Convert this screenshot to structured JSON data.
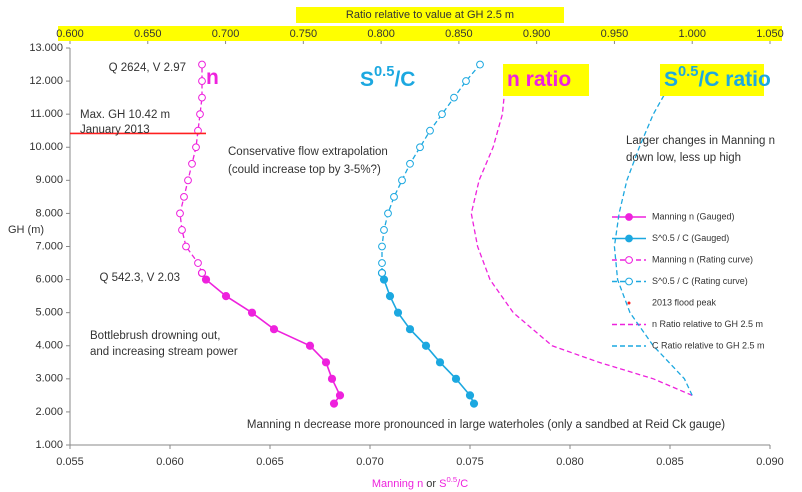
{
  "chart_data": {
    "type": "line",
    "y_label": "GH (m)",
    "x_label": [
      {
        "text": "Manning n",
        "color": "#ee22dd"
      },
      {
        "text": " or ",
        "color": "#333333"
      },
      {
        "text": "S",
        "color": "#ee22dd"
      },
      {
        "text": "0.5",
        "color": "#ee22dd",
        "sup": true
      },
      {
        "text": "/C",
        "color": "#ee22dd"
      }
    ],
    "x2_label": "Ratio relative to value at GH 2.5 m",
    "highlight_color": "#ffff00",
    "xlim": [
      0.055,
      0.09
    ],
    "xticks": [
      {
        "value": 0.055,
        "label": "0.055"
      },
      {
        "value": 0.06,
        "label": "0.060"
      },
      {
        "value": 0.065,
        "label": "0.065"
      },
      {
        "value": 0.07,
        "label": "0.070"
      },
      {
        "value": 0.075,
        "label": "0.075"
      },
      {
        "value": 0.08,
        "label": "0.080"
      },
      {
        "value": 0.085,
        "label": "0.085"
      },
      {
        "value": 0.09,
        "label": "0.090"
      }
    ],
    "x2lim": [
      0.6,
      1.05
    ],
    "x2ticks": [
      {
        "value": 0.6,
        "label": "0.600"
      },
      {
        "value": 0.65,
        "label": "0.650"
      },
      {
        "value": 0.7,
        "label": "0.700"
      },
      {
        "value": 0.75,
        "label": "0.750"
      },
      {
        "value": 0.8,
        "label": "0.800"
      },
      {
        "value": 0.85,
        "label": "0.850"
      },
      {
        "value": 0.9,
        "label": "0.900"
      },
      {
        "value": 0.95,
        "label": "0.950"
      },
      {
        "value": 1.0,
        "label": "1.000"
      },
      {
        "value": 1.05,
        "label": "1.050"
      }
    ],
    "ylim": [
      1,
      13
    ],
    "yticks": [
      {
        "value": 1,
        "label": "1.000"
      },
      {
        "value": 2,
        "label": "2.000"
      },
      {
        "value": 3,
        "label": "3.000"
      },
      {
        "value": 4,
        "label": "4.000"
      },
      {
        "value": 5,
        "label": "5.000"
      },
      {
        "value": 6,
        "label": "6.000"
      },
      {
        "value": 7,
        "label": "7.000"
      },
      {
        "value": 8,
        "label": "8.000"
      },
      {
        "value": 9,
        "label": "9.000"
      },
      {
        "value": 10,
        "label": "10.000"
      },
      {
        "value": 11,
        "label": "11.000"
      },
      {
        "value": 12,
        "label": "12.000"
      },
      {
        "value": 13,
        "label": "13.000"
      }
    ],
    "series": [
      {
        "name": "Manning n (Gauged)",
        "color": "#ee22dd",
        "line": "solid",
        "marker": "filled",
        "axis": "x",
        "x": [
          0.0682,
          0.0685,
          0.0681,
          0.0678,
          0.067,
          0.0652,
          0.0641,
          0.0628,
          0.0618,
          0.0616
        ],
        "values": [
          2.25,
          2.5,
          3.0,
          3.5,
          4.0,
          4.5,
          5.0,
          5.5,
          6.0,
          6.2
        ]
      },
      {
        "name": "S^0.5 / C (Gauged)",
        "color": "#1ca8e0",
        "line": "solid",
        "marker": "filled",
        "axis": "x",
        "x": [
          0.0752,
          0.075,
          0.0743,
          0.0735,
          0.0728,
          0.072,
          0.0714,
          0.071,
          0.0707,
          0.0706
        ],
        "values": [
          2.25,
          2.5,
          3.0,
          3.5,
          4.0,
          4.5,
          5.0,
          5.5,
          6.0,
          6.2
        ]
      },
      {
        "name": "Manning n (Rating curve)",
        "color": "#ee22dd",
        "line": "dashed",
        "marker": "open",
        "axis": "x",
        "x": [
          0.0616,
          0.0614,
          0.0608,
          0.0606,
          0.0605,
          0.0607,
          0.0609,
          0.0611,
          0.0613,
          0.0614,
          0.0615,
          0.0616,
          0.0616,
          0.0616
        ],
        "values": [
          6.2,
          6.5,
          7.0,
          7.5,
          8.0,
          8.5,
          9.0,
          9.5,
          10.0,
          10.5,
          11.0,
          11.5,
          12.0,
          12.5
        ]
      },
      {
        "name": "S^0.5 / C (Rating curve)",
        "color": "#1ca8e0",
        "line": "dashed",
        "marker": "open",
        "axis": "x",
        "x": [
          0.0706,
          0.0706,
          0.0706,
          0.0707,
          0.0709,
          0.0712,
          0.0716,
          0.072,
          0.0725,
          0.073,
          0.0736,
          0.0742,
          0.0748,
          0.0755
        ],
        "values": [
          6.2,
          6.5,
          7.0,
          7.5,
          8.0,
          8.5,
          9.0,
          9.5,
          10.0,
          10.5,
          11.0,
          11.5,
          12.0,
          12.5
        ]
      },
      {
        "name": "2013 flood peak",
        "color": "#ff2020",
        "line": "solid",
        "marker": "dot",
        "axis": "x",
        "x": [
          0.055,
          0.0618
        ],
        "values": [
          10.42,
          10.42
        ]
      },
      {
        "name": "n Ratio relative to GH 2.5 m",
        "color": "#ee22dd",
        "line": "dashed",
        "marker": "none",
        "axis": "x2",
        "x": [
          1.0,
          0.975,
          0.94,
          0.91,
          0.885,
          0.87,
          0.862,
          0.858,
          0.863,
          0.872,
          0.878,
          0.88,
          0.879
        ],
        "values": [
          2.5,
          3.0,
          3.5,
          4.0,
          5.0,
          6.0,
          7.0,
          8.0,
          9.0,
          10.0,
          11.0,
          12.0,
          12.5
        ]
      },
      {
        "name": "C Ratio relative to GH 2.5 m",
        "color": "#1ca8e0",
        "line": "dashed",
        "marker": "none",
        "axis": "x2",
        "x": [
          1.0,
          0.995,
          0.985,
          0.975,
          0.96,
          0.952,
          0.95,
          0.953,
          0.958,
          0.966,
          0.975,
          0.987,
          0.995
        ],
        "values": [
          2.5,
          3.0,
          3.5,
          4.0,
          5.0,
          6.0,
          7.0,
          8.0,
          9.0,
          10.0,
          11.0,
          12.0,
          12.5
        ]
      }
    ],
    "curve_labels": [
      [
        {
          "text": "n",
          "color": "#ee22dd"
        }
      ],
      [
        {
          "text": "S",
          "color": "#1ca8e0"
        },
        {
          "text": "0.5",
          "color": "#1ca8e0",
          "sup": true
        },
        {
          "text": "/C",
          "color": "#1ca8e0"
        }
      ],
      [
        {
          "text": "n ratio",
          "color": "#ee22dd"
        }
      ],
      [
        {
          "text": "S",
          "color": "#1ca8e0"
        },
        {
          "text": "0.5",
          "color": "#1ca8e0",
          "sup": true
        },
        {
          "text": "/C ratio",
          "color": "#1ca8e0"
        }
      ]
    ],
    "annotations": [
      {
        "text": "Q 2624, V 2.97",
        "color": "#ff2020"
      },
      {
        "text": "Max. GH 10.42 m",
        "color": "#ff2020"
      },
      {
        "text": "January 2013",
        "color": "#ff2020"
      },
      {
        "text": "Conservative flow extrapolation",
        "color": "#ee22dd"
      },
      {
        "text": "(could increase top by 3-5%?)",
        "color": "#ee22dd"
      },
      {
        "text": "Q 542.3, V 2.03",
        "color": "#ff2020"
      },
      {
        "text": "Bottlebrush drowning out,",
        "color": "#ee22dd"
      },
      {
        "text": "and increasing stream power",
        "color": "#ee22dd"
      },
      {
        "text": "Larger changes in Manning n",
        "color": "#1ca8e0"
      },
      {
        "text": "down low, less up high",
        "color": "#1ca8e0"
      },
      {
        "text": "Manning n decrease more pronounced  in large waterholes (only a sandbed at Reid Ck gauge)",
        "color": "#ee22dd"
      }
    ]
  }
}
